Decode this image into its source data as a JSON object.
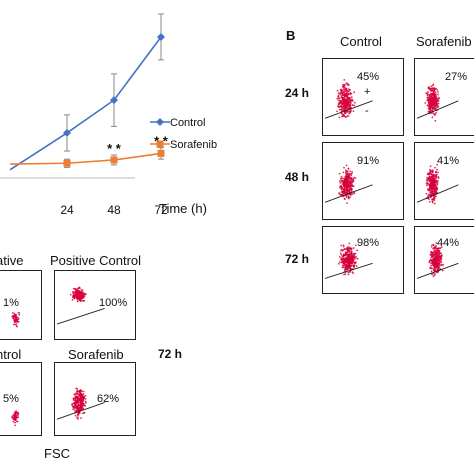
{
  "colors": {
    "control": "#4472C4",
    "sorafenib": "#ED7D31",
    "dots": "#D6003A",
    "ink": "#111111"
  },
  "chart_data": [
    {
      "type": "line",
      "xlabel": "Time (h)",
      "categories": [
        "24",
        "48",
        "72"
      ],
      "series": [
        {
          "name": "Control",
          "values": [
            0.55,
            0.95,
            1.72
          ],
          "err": [
            0.22,
            0.32,
            0.28
          ]
        },
        {
          "name": "Sorafenib",
          "values": [
            0.18,
            0.22,
            0.3
          ],
          "err": [
            0.05,
            0.06,
            0.07
          ]
        }
      ],
      "annotations": [
        {
          "x": "48",
          "text": "* *"
        },
        {
          "x": "72",
          "text": "* *"
        }
      ],
      "legend": "right",
      "grid": false
    },
    {
      "type": "scatter",
      "panel_label": "B",
      "columns": [
        "Control",
        "Sorafenib"
      ],
      "rows": [
        "24 h",
        "48 h",
        "72 h"
      ],
      "values": [
        [
          "45%",
          "27%"
        ],
        [
          "91%",
          "41%"
        ],
        [
          "98%",
          "44%"
        ]
      ],
      "gate_marks": [
        "+",
        "-"
      ]
    },
    {
      "type": "scatter",
      "time_label": "72 h",
      "xlabel": "FSC",
      "panels": [
        {
          "title": "ative",
          "value": "1%"
        },
        {
          "title": "Positive Control",
          "value": "100%"
        },
        {
          "title": "ntrol",
          "value": "5%"
        },
        {
          "title": "Sorafenib",
          "value": "62%"
        }
      ]
    }
  ]
}
